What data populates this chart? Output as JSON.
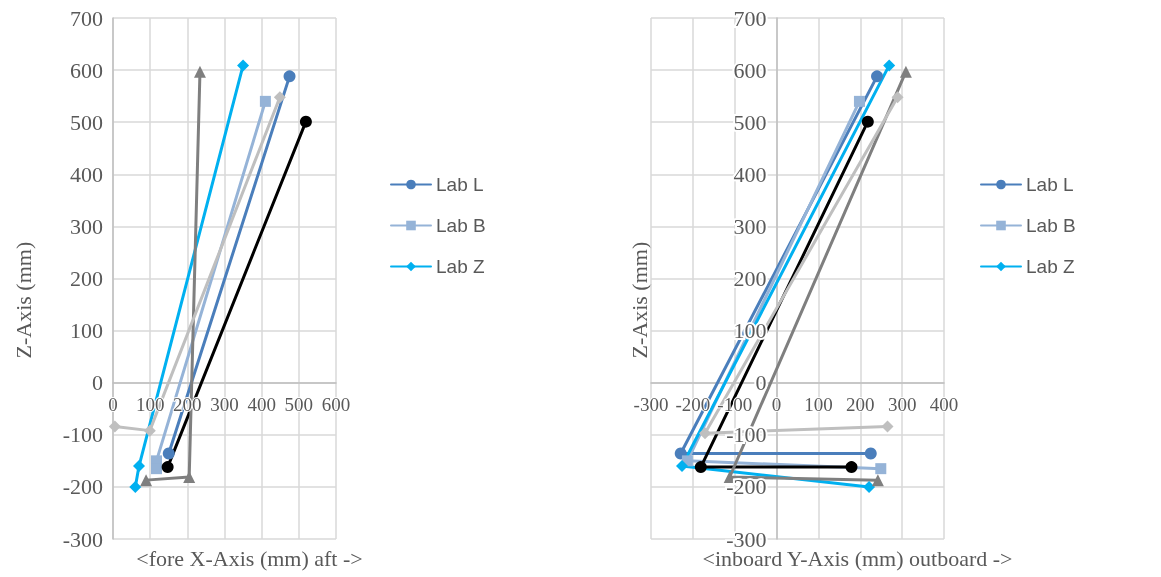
{
  "chart_data": [
    {
      "type": "line",
      "xlabel": "<fore X-Axis (mm) aft ->",
      "ylabel": "Z-Axis (mm)",
      "xlim": [
        0,
        600
      ],
      "xticks": [
        0,
        100,
        200,
        300,
        400,
        500,
        600
      ],
      "ylim": [
        -300,
        700
      ],
      "yticks": [
        -300,
        -200,
        -100,
        0,
        100,
        200,
        300,
        400,
        500,
        600,
        700
      ],
      "grid": true,
      "legend": "right",
      "series": [
        {
          "name": "Lab L",
          "color": "#4a7ebb",
          "marker": "circle",
          "x": [
            475,
            150
          ],
          "values": [
            588,
            -136
          ]
        },
        {
          "name": "Lab B",
          "color": "#95b3d7",
          "marker": "square",
          "x": [
            410,
            117,
            117
          ],
          "values": [
            540,
            -150,
            -165
          ]
        },
        {
          "name": "Lab Z",
          "color": "#00b0f0",
          "marker": "diamond",
          "x": [
            350,
            70,
            60
          ],
          "values": [
            609,
            -160,
            -200
          ]
        },
        {
          "color": "#000000",
          "marker": "circle",
          "x": [
            519,
            147
          ],
          "values": [
            501,
            -162
          ]
        },
        {
          "color": "#7f7f7f",
          "marker": "triangle",
          "x": [
            234,
            205,
            89
          ],
          "values": [
            597,
            -181,
            -187
          ]
        },
        {
          "color": "#bfbfbf",
          "marker": "diamond",
          "x": [
            449,
            99,
            5
          ],
          "values": [
            548,
            -92,
            -84
          ]
        }
      ]
    },
    {
      "type": "line",
      "xlabel": "<inboard Y-Axis (mm) outboard ->",
      "ylabel": "Z-Axis (mm)",
      "xlim": [
        -300,
        400
      ],
      "xticks": [
        -300,
        -200,
        -100,
        0,
        100,
        200,
        300,
        400
      ],
      "ylim": [
        -300,
        700
      ],
      "yticks": [
        -300,
        -200,
        -100,
        0,
        100,
        200,
        300,
        400,
        500,
        600,
        700
      ],
      "grid": true,
      "legend": "right",
      "series": [
        {
          "name": "Lab L",
          "color": "#4a7ebb",
          "marker": "circle",
          "x": [
            240,
            -229,
            225
          ],
          "values": [
            588,
            -136,
            -136
          ]
        },
        {
          "name": "Lab B",
          "color": "#95b3d7",
          "marker": "square",
          "x": [
            198,
            -213,
            249
          ],
          "values": [
            540,
            -150,
            -165
          ]
        },
        {
          "name": "Lab Z",
          "color": "#00b0f0",
          "marker": "diamond",
          "x": [
            269,
            -226,
            221
          ],
          "values": [
            609,
            -160,
            -200
          ]
        },
        {
          "color": "#000000",
          "marker": "circle",
          "x": [
            218,
            -181,
            179
          ],
          "values": [
            501,
            -162,
            -162
          ]
        },
        {
          "color": "#7f7f7f",
          "marker": "triangle",
          "x": [
            309,
            -112,
            242
          ],
          "values": [
            597,
            -181,
            -187
          ]
        },
        {
          "color": "#bfbfbf",
          "marker": "diamond",
          "x": [
            289,
            -171,
            265
          ],
          "values": [
            548,
            -97,
            -84
          ]
        }
      ]
    }
  ]
}
